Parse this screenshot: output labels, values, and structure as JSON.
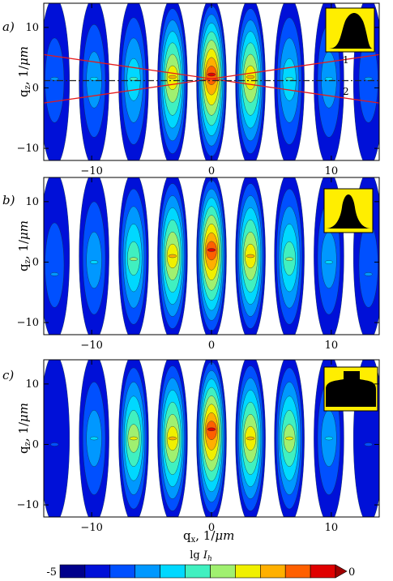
{
  "chart_data": [
    {
      "type": "heatmap",
      "panel": "a)",
      "xlim": [
        -14,
        14
      ],
      "ylim": [
        -12,
        14
      ],
      "x_ticks": [
        -10,
        0,
        10
      ],
      "y_ticks": [
        -10,
        0,
        10
      ],
      "x_tick_labels": [
        "−10",
        "0",
        "10"
      ],
      "y_tick_labels": [
        "−10",
        "0",
        "10"
      ],
      "xlabel": "",
      "ylabel": "q_z, 1/μm",
      "streak_centers": [
        -13.1,
        -9.8,
        -6.5,
        -3.25,
        0,
        3.25,
        6.5,
        9.8,
        13.1
      ],
      "peak_levels": [
        3,
        4,
        5,
        8,
        10,
        8,
        5,
        4,
        3
      ],
      "peak_qz": [
        1.5,
        1.5,
        1.5,
        1.8,
        2.2,
        1.8,
        1.5,
        1.5,
        1.5
      ],
      "inset_shape": "bell",
      "lines": [
        {
          "label": "1",
          "from": [
            -14,
            5.5
          ],
          "to": [
            14,
            -2.5
          ],
          "color": "#e41a1c"
        },
        {
          "label": "",
          "from": [
            -14,
            -2.5
          ],
          "to": [
            14,
            5.5
          ],
          "color": "#e41a1c"
        },
        {
          "label": "2",
          "from": [
            -14,
            1.2
          ],
          "to": [
            14,
            1.2
          ],
          "color": "#222222",
          "dashed": true
        }
      ]
    },
    {
      "type": "heatmap",
      "panel": "b)",
      "xlim": [
        -14,
        14
      ],
      "ylim": [
        -12,
        14
      ],
      "x_ticks": [
        -10,
        0,
        10
      ],
      "y_ticks": [
        -10,
        0,
        10
      ],
      "x_tick_labels": [
        "−10",
        "0",
        "10"
      ],
      "y_tick_labels": [
        "−10",
        "0",
        "10"
      ],
      "xlabel": "",
      "ylabel": "q_z, 1/μm",
      "streak_centers": [
        -13.1,
        -9.8,
        -6.5,
        -3.25,
        0,
        3.25,
        6.5,
        9.8,
        13.1
      ],
      "peak_levels": [
        3,
        4,
        6,
        8,
        10,
        8,
        6,
        4,
        3
      ],
      "peak_qz": [
        -2,
        0,
        0.5,
        1,
        2,
        1,
        0.5,
        0,
        -2
      ],
      "inset_shape": "flared"
    },
    {
      "type": "heatmap",
      "panel": "c)",
      "xlim": [
        -14,
        14
      ],
      "ylim": [
        -12,
        14
      ],
      "x_ticks": [
        -10,
        0,
        10
      ],
      "y_ticks": [
        -10,
        0,
        10
      ],
      "x_tick_labels": [
        "−10",
        "0",
        "10"
      ],
      "y_tick_labels": [
        "−10",
        "0",
        "10"
      ],
      "xlabel": "q_x, 1/μm",
      "ylabel": "q_z, 1/μm",
      "streak_centers": [
        -13.1,
        -9.8,
        -6.5,
        -3.25,
        0,
        3.25,
        6.5,
        9.8,
        13.1
      ],
      "peak_levels": [
        2,
        4,
        7,
        8,
        10,
        8,
        7,
        4,
        2
      ],
      "peak_qz": [
        0,
        1,
        1,
        1,
        2.5,
        1,
        1,
        1,
        0
      ],
      "inset_shape": "mushroom"
    }
  ],
  "colorbar": {
    "label": "lg I_h",
    "min_label": "-5",
    "max_label": "0",
    "colors": [
      "#00008b",
      "#0010d8",
      "#0050ff",
      "#0098ff",
      "#00d8ff",
      "#40f0c0",
      "#a0f070",
      "#f0f000",
      "#ffb000",
      "#ff6000",
      "#e00000",
      "#a00000"
    ]
  }
}
